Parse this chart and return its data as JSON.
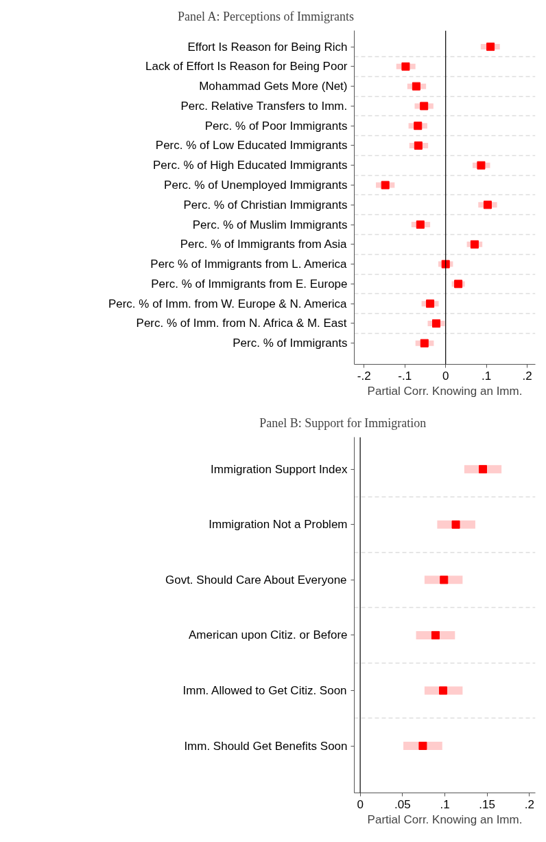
{
  "chart_data": [
    {
      "type": "scatter",
      "orientation": "horizontal",
      "title": "Panel A: Perceptions of Immigrants",
      "xlabel": "Partial Corr. Knowing an Imm.",
      "categories": [
        "Effort Is Reason for Being Rich",
        "Lack of Effort Is Reason for Being Poor",
        "Mohammad Gets More (Net)",
        "Perc. Relative Transfers to Imm.",
        "Perc. % of Poor Immigrants",
        "Perc. % of Low Educated Immigrants",
        "Perc. % of High Educated Immigrants",
        "Perc. % of Unemployed Immigrants",
        "Perc. % of Christian Immigrants",
        "Perc. % of Muslim Immigrants",
        "Perc. % of Immigrants from Asia",
        "Perc % of Immigrants from L. America",
        "Perc. % of Immigrants from E. Europe",
        "Perc. % of Imm. from W. Europe & N. America",
        "Perc. % of Imm. from N. Africa & M. East",
        "Perc. % of Immigrants"
      ],
      "series": [
        {
          "color": "#ff0000",
          "values": [
            0.11,
            -0.098,
            -0.072,
            -0.053,
            -0.068,
            -0.067,
            0.087,
            -0.148,
            0.103,
            -0.062,
            0.071,
            0.0,
            0.031,
            -0.038,
            -0.023,
            -0.052
          ],
          "errors": [
            [
              0.086,
              0.133
            ],
            [
              -0.121,
              -0.074
            ],
            [
              -0.094,
              -0.048
            ],
            [
              -0.076,
              -0.03
            ],
            [
              -0.091,
              -0.045
            ],
            [
              -0.089,
              -0.043
            ],
            [
              0.066,
              0.109
            ],
            [
              -0.171,
              -0.125
            ],
            [
              0.08,
              0.126
            ],
            [
              -0.084,
              -0.038
            ],
            [
              0.052,
              0.09
            ],
            [
              -0.018,
              0.018
            ],
            [
              0.015,
              0.047
            ],
            [
              -0.059,
              -0.017
            ],
            [
              -0.044,
              -0.002
            ],
            [
              -0.074,
              -0.029
            ]
          ]
        }
      ],
      "xlim": [
        -0.224,
        0.22
      ],
      "xticks": [
        {
          "value": -0.2,
          "label": "-.2"
        },
        {
          "value": -0.1,
          "label": "-.1"
        },
        0,
        {
          "value": 0.1,
          "label": ".1"
        },
        {
          "value": 0.2,
          "label": ".2"
        }
      ],
      "ref_lines": [
        {
          "axis": "x",
          "value": 0,
          "color": "#000000"
        }
      ],
      "grid": "y",
      "marker": "square"
    },
    {
      "type": "scatter",
      "orientation": "horizontal",
      "title": "Panel B: Support for Immigration",
      "xlabel": "Partial Corr. Knowing an Imm.",
      "categories": [
        "Immigration Support Index",
        "Immigration Not a Problem",
        "Govt. Should Care About Everyone",
        "American upon Citiz. or Before",
        "Imm. Allowed to Get Citiz. Soon",
        "Imm. Should Get Benefits Soon"
      ],
      "series": [
        {
          "color": "#ff0000",
          "values": [
            0.145,
            0.113,
            0.099,
            0.089,
            0.098,
            0.074
          ],
          "errors": [
            [
              0.123,
              0.167
            ],
            [
              0.091,
              0.136
            ],
            [
              0.076,
              0.121
            ],
            [
              0.066,
              0.112
            ],
            [
              0.076,
              0.121
            ],
            [
              0.051,
              0.097
            ]
          ]
        }
      ],
      "xlim": [
        -0.007,
        0.207
      ],
      "xticks": [
        0,
        {
          "value": 0.05,
          "label": ".05"
        },
        {
          "value": 0.1,
          "label": ".1"
        },
        {
          "value": 0.15,
          "label": ".15"
        },
        {
          "value": 0.2,
          "label": ".2"
        }
      ],
      "ref_lines": [
        {
          "axis": "x",
          "value": 0,
          "color": "#000000"
        }
      ],
      "grid": "y",
      "marker": "square"
    }
  ]
}
